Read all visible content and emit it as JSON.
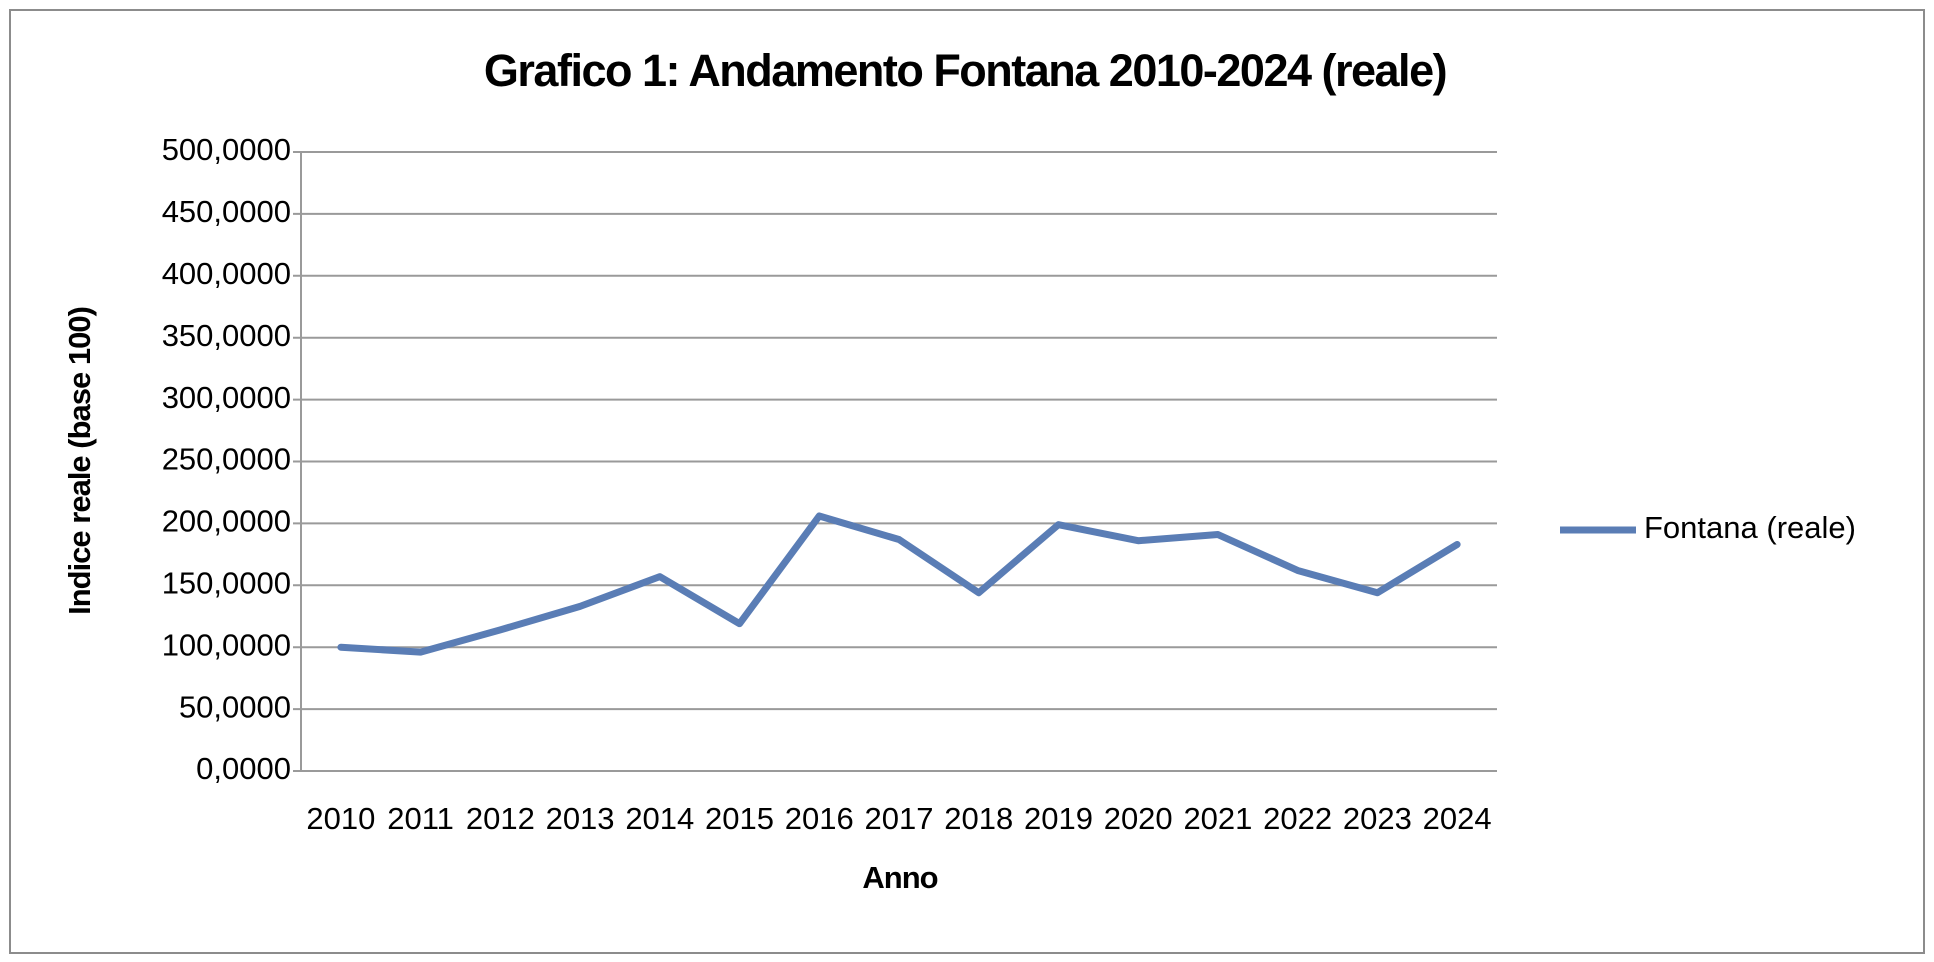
{
  "chart_data": {
    "type": "line",
    "title": "Grafico 1: Andamento Fontana 2010-2024 (reale)",
    "x_label": "Anno",
    "y_label": "Indice reale (base 100)",
    "categories": [
      "2010",
      "2011",
      "2012",
      "2013",
      "2014",
      "2015",
      "2016",
      "2017",
      "2018",
      "2019",
      "2020",
      "2021",
      "2022",
      "2023",
      "2024"
    ],
    "series": [
      {
        "name": "Fontana (reale)",
        "color": "#5a7db5",
        "values": [
          100,
          96,
          114,
          133,
          157,
          119,
          206,
          187,
          144,
          199,
          186,
          191,
          162,
          144,
          183
        ]
      }
    ],
    "ylim": [
      0,
      500
    ],
    "yticks": [
      {
        "value": 0,
        "label": "0,0000"
      },
      {
        "value": 50,
        "label": "50,0000"
      },
      {
        "value": 100,
        "label": "100,0000"
      },
      {
        "value": 150,
        "label": "150,0000"
      },
      {
        "value": 200,
        "label": "200,0000"
      },
      {
        "value": 250,
        "label": "250,0000"
      },
      {
        "value": 300,
        "label": "300,0000"
      },
      {
        "value": 350,
        "label": "350,0000"
      },
      {
        "value": 400,
        "label": "400,0000"
      },
      {
        "value": 450,
        "label": "450,0000"
      },
      {
        "value": 500,
        "label": "500,0000"
      }
    ],
    "grid": true,
    "legend": "right"
  }
}
